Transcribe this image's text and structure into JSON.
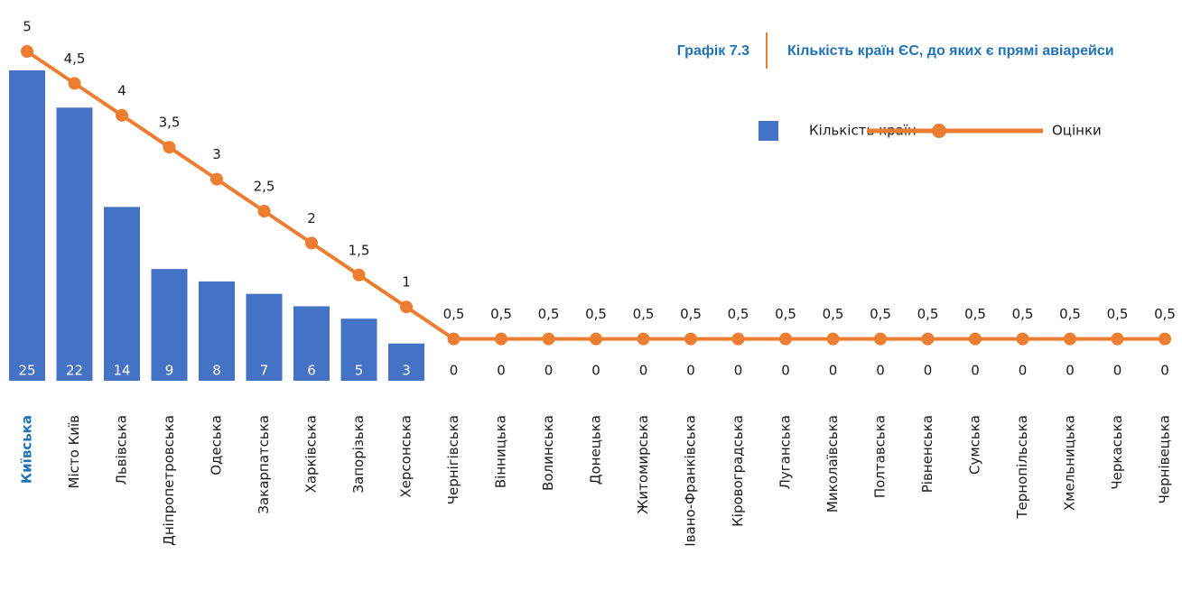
{
  "chart_data": {
    "type": "bar-line",
    "label": "Графік 7.3",
    "title": "Кількість країн ЄС, до яких є прямі авіарейси",
    "categories": [
      "Київська",
      "Місто Київ",
      "Львівська",
      "Дніпропетровська",
      "Одеська",
      "Закарпатська",
      "Харківська",
      "Запорізька",
      "Херсонська",
      "Чернігівська",
      "Вінницька",
      "Волинська",
      "Донецька",
      "Житомирська",
      "Івано-Франківська",
      "Кіровоградська",
      "Луганська",
      "Миколаївська",
      "Полтавська",
      "Рівненська",
      "Сумська",
      "Тернопільська",
      "Хмельницька",
      "Черкаська",
      "Чернівецька"
    ],
    "highlight_index": 0,
    "series": [
      {
        "name": "Кількість країн",
        "type": "bar",
        "color": "#4472c4",
        "values": [
          25,
          22,
          14,
          9,
          8,
          7,
          6,
          5,
          3,
          0,
          0,
          0,
          0,
          0,
          0,
          0,
          0,
          0,
          0,
          0,
          0,
          0,
          0,
          0,
          0
        ]
      },
      {
        "name": "Оцінки",
        "type": "line",
        "axis": "y2",
        "color": "#ed7d31",
        "values": [
          5,
          4.5,
          4,
          3.5,
          3,
          2.5,
          2,
          1.5,
          1,
          0.5,
          0.5,
          0.5,
          0.5,
          0.5,
          0.5,
          0.5,
          0.5,
          0.5,
          0.5,
          0.5,
          0.5,
          0.5,
          0.5,
          0.5,
          0.5
        ],
        "value_labels": [
          "5",
          "4,5",
          "4",
          "3,5",
          "3",
          "2,5",
          "2",
          "1,5",
          "1",
          "0,5",
          "0,5",
          "0,5",
          "0,5",
          "0,5",
          "0,5",
          "0,5",
          "0,5",
          "0,5",
          "0,5",
          "0,5",
          "0,5",
          "0,5",
          "0,5",
          "0,5",
          "0,5"
        ]
      }
    ],
    "ylim": [
      0,
      25
    ],
    "y2lim": [
      0,
      5
    ],
    "grid": false,
    "legend": "top-right"
  }
}
